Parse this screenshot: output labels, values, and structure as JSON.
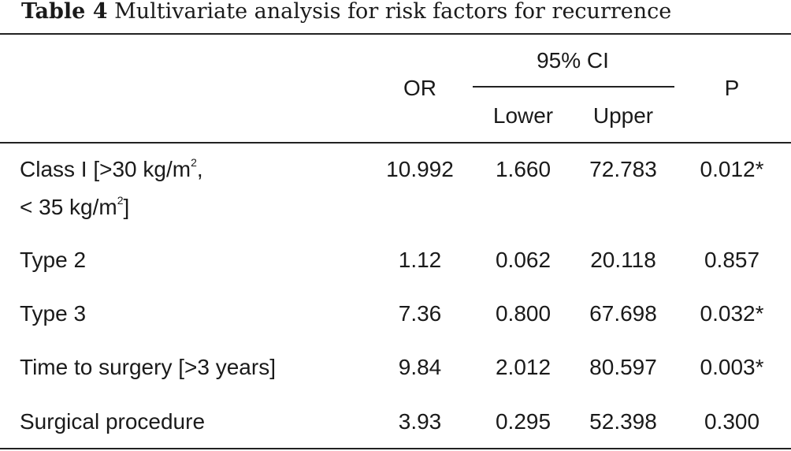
{
  "caption": {
    "label": "Table 4",
    "text": "Multivariate analysis for risk factors for recurrence"
  },
  "headers": {
    "or": "OR",
    "ci_group": "95% CI",
    "lower": "Lower",
    "upper": "Upper",
    "p": "P"
  },
  "rows": [
    {
      "factor_line1": "Class I [>30 kg/m",
      "factor_sup1": "2",
      "factor_line1_end": ",",
      "factor_line2": "< 35 kg/m",
      "factor_sup2": "2",
      "factor_line2_end": "]",
      "or": "10.992",
      "lower": "1.660",
      "upper": "72.783",
      "p": "0.012*"
    },
    {
      "factor": "Type 2",
      "or": "1.12",
      "lower": "0.062",
      "upper": "20.118",
      "p": "0.857"
    },
    {
      "factor": "Type 3",
      "or": "7.36",
      "lower": "0.800",
      "upper": "67.698",
      "p": "0.032*"
    },
    {
      "factor": "Time to surgery [>3 years]",
      "or": "9.84",
      "lower": "2.012",
      "upper": "80.597",
      "p": "0.003*"
    },
    {
      "factor": "Surgical procedure",
      "or": "3.93",
      "lower": "0.295",
      "upper": "52.398",
      "p": "0.300"
    }
  ]
}
